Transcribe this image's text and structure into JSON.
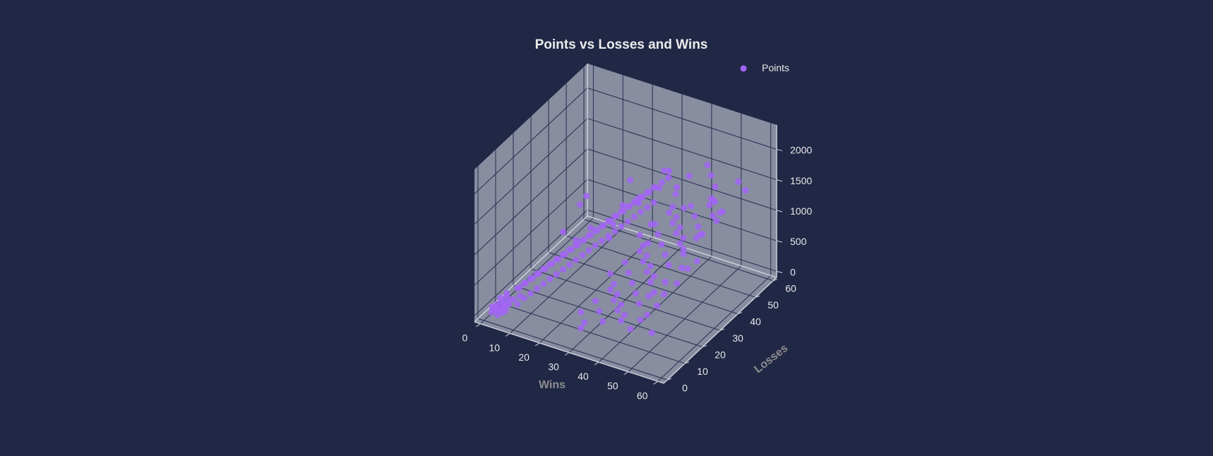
{
  "colors": {
    "background": "#212846",
    "pane": "#8e92a5",
    "grid": "#2e3656",
    "edge": "#d2d4de",
    "points": "#a265f5"
  },
  "chart_data": {
    "type": "scatter",
    "projection": "3d",
    "title": "Points vs Losses and Wins",
    "xlabel": "Wins",
    "ylabel": "Losses",
    "zlabel": "",
    "xlim": [
      -2,
      62
    ],
    "ylim": [
      -2,
      62
    ],
    "zlim": [
      -100,
      2400
    ],
    "xticks": [
      "0",
      "10",
      "20",
      "30",
      "40",
      "50",
      "60"
    ],
    "yticks": [
      "0",
      "10",
      "20",
      "30",
      "40",
      "50",
      "60"
    ],
    "zticks": [
      "0",
      "500",
      "1000",
      "1500",
      "2000"
    ],
    "grid": true,
    "legend": {
      "position": "top-right",
      "entries": [
        "Points"
      ]
    },
    "series": [
      {
        "name": "Points",
        "x": [
          2,
          3,
          3,
          4,
          5,
          2,
          4,
          6,
          3,
          5,
          1,
          2,
          4,
          3,
          5,
          6,
          2,
          4,
          3,
          5,
          7,
          6,
          8,
          7,
          9,
          6,
          8,
          10,
          7,
          9,
          11,
          8,
          10,
          12,
          9,
          11,
          13,
          10,
          12,
          14,
          11,
          13,
          15,
          12,
          14,
          16,
          13,
          15,
          17,
          14,
          16,
          18,
          15,
          17,
          19,
          16,
          18,
          20,
          17,
          19,
          21,
          18,
          20,
          22,
          19,
          21,
          23,
          20,
          22,
          24,
          21,
          23,
          25,
          22,
          24,
          26,
          23,
          25,
          27,
          24,
          26,
          28,
          25,
          27,
          29,
          26,
          28,
          30,
          27,
          29,
          31,
          28,
          30,
          32,
          29,
          31,
          33,
          30,
          32,
          34,
          31,
          33,
          35,
          32,
          34,
          36,
          33,
          35,
          37,
          34,
          36,
          38,
          35,
          37,
          39,
          36,
          38,
          40,
          37,
          39,
          41,
          38,
          40,
          42,
          39,
          41,
          43,
          40,
          42,
          44,
          41,
          43,
          45,
          42,
          44,
          46,
          43,
          45,
          47,
          44,
          46,
          48,
          45,
          47,
          49,
          46,
          48,
          50,
          47,
          49,
          51,
          48,
          50,
          52,
          49,
          51,
          53,
          50,
          52,
          55,
          18,
          26,
          33,
          39,
          46,
          52,
          12,
          22,
          30,
          41,
          28,
          36,
          44,
          20,
          14,
          38,
          47,
          31,
          25,
          35,
          42,
          50,
          24,
          16,
          29,
          40
        ],
        "y": [
          1,
          2,
          3,
          1,
          2,
          4,
          3,
          2,
          5,
          4,
          3,
          6,
          5,
          2,
          6,
          4,
          2,
          6,
          8,
          3,
          5,
          10,
          7,
          12,
          4,
          9,
          14,
          6,
          11,
          16,
          8,
          13,
          18,
          10,
          15,
          20,
          12,
          17,
          22,
          14,
          19,
          24,
          16,
          21,
          26,
          18,
          23,
          28,
          20,
          25,
          30,
          22,
          27,
          32,
          24,
          29,
          34,
          26,
          31,
          36,
          28,
          33,
          38,
          30,
          35,
          40,
          32,
          37,
          42,
          34,
          39,
          44,
          36,
          41,
          46,
          38,
          43,
          48,
          40,
          45,
          50,
          42,
          47,
          52,
          44,
          49,
          54,
          46,
          51,
          56,
          3,
          8,
          13,
          18,
          23,
          28,
          33,
          38,
          43,
          48,
          5,
          10,
          15,
          20,
          25,
          30,
          35,
          40,
          45,
          50,
          7,
          12,
          17,
          22,
          27,
          32,
          37,
          42,
          47,
          52,
          9,
          14,
          19,
          24,
          29,
          34,
          39,
          44,
          49,
          54,
          11,
          16,
          21,
          26,
          31,
          36,
          41,
          46,
          51,
          56,
          6,
          12,
          18,
          24,
          30,
          36,
          42,
          48,
          10,
          20,
          30,
          40,
          50,
          8,
          16,
          24,
          32,
          40,
          48,
          56,
          22,
          35,
          44,
          51,
          54,
          57,
          38,
          46,
          52,
          58,
          41,
          49,
          55,
          27,
          31,
          45,
          50,
          53,
          29,
          36,
          43,
          47,
          33,
          18,
          39,
          26
        ],
        "z": [
          40,
          60,
          80,
          30,
          50,
          90,
          70,
          100,
          120,
          110,
          60,
          140,
          130,
          90,
          160,
          150,
          80,
          200,
          180,
          150,
          220,
          260,
          240,
          300,
          200,
          280,
          340,
          260,
          320,
          380,
          300,
          360,
          420,
          340,
          400,
          460,
          380,
          440,
          500,
          420,
          480,
          540,
          460,
          520,
          580,
          500,
          560,
          620,
          540,
          600,
          660,
          580,
          640,
          700,
          620,
          680,
          740,
          660,
          720,
          780,
          700,
          760,
          820,
          740,
          800,
          860,
          780,
          840,
          900,
          820,
          880,
          940,
          860,
          920,
          980,
          900,
          960,
          1020,
          940,
          1000,
          1060,
          980,
          1040,
          1100,
          1020,
          1080,
          1140,
          1060,
          1120,
          1180,
          180,
          260,
          340,
          420,
          500,
          580,
          660,
          740,
          820,
          900,
          220,
          300,
          380,
          460,
          540,
          620,
          700,
          780,
          860,
          940,
          260,
          340,
          420,
          500,
          580,
          660,
          740,
          820,
          900,
          980,
          300,
          380,
          460,
          540,
          620,
          700,
          780,
          860,
          940,
          1020,
          340,
          420,
          500,
          580,
          660,
          740,
          820,
          900,
          980,
          1060,
          320,
          420,
          520,
          620,
          720,
          820,
          920,
          1020,
          380,
          560,
          740,
          920,
          1100,
          300,
          480,
          660,
          840,
          1020,
          1200,
          1380,
          900,
          1250,
          1400,
          1500,
          1350,
          1450,
          1100,
          1300,
          1420,
          1520,
          1150,
          1320,
          1480,
          1000,
          1180,
          1350,
          1280,
          1400,
          860,
          1050,
          1240,
          1360,
          960,
          1120,
          1300,
          1090
        ]
      }
    ]
  }
}
